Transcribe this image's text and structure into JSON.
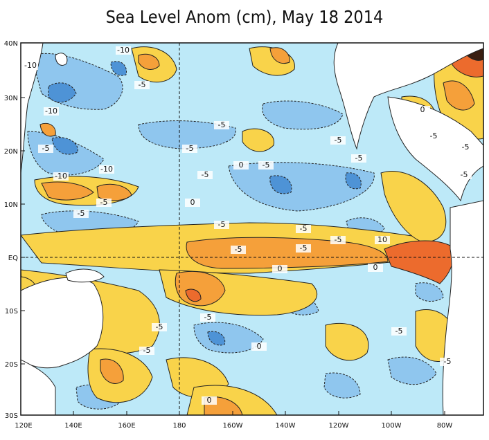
{
  "title": "Sea Level Anom (cm), May 18 2014",
  "axes": {
    "lat_ticks": [
      "40N",
      "30N",
      "20N",
      "10N",
      "EQ",
      "10S",
      "20S",
      "30S"
    ],
    "lon_ticks": [
      "120E",
      "140E",
      "160E",
      "180",
      "160W",
      "140W",
      "120W",
      "100W",
      "80W"
    ]
  },
  "contour_labels": [
    "-10",
    "-5",
    "-10",
    "-10",
    "-5",
    "-10",
    "-10",
    "-5",
    "-5",
    "-5",
    "-5",
    "-5",
    "-5",
    "-5",
    "0",
    "-5",
    "-5",
    "-5",
    "10",
    "0",
    "-5",
    "-5",
    "-5",
    "-5",
    "-5",
    "-5",
    "-5",
    "0",
    "-5",
    "0",
    "0",
    "-5",
    "-5",
    "-5",
    "0",
    "0"
  ],
  "colors": {
    "ocean_base": "#bde9f8",
    "negative_light": "#8fc6ee",
    "negative_strong": "#4e93d6",
    "positive_light": "#f9d34a",
    "positive_mid": "#f5a03a",
    "positive_strong": "#ec6b2d",
    "land": "#ffffff",
    "coast": "#222222"
  }
}
